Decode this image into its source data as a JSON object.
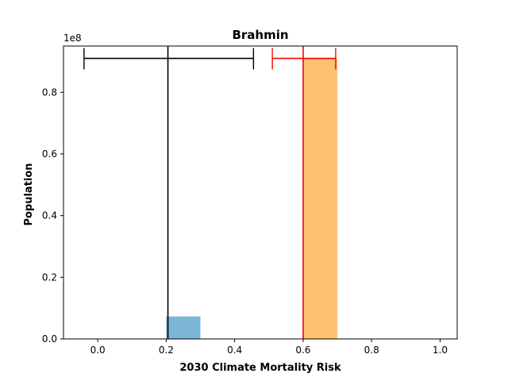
{
  "chart_data": {
    "type": "bar",
    "title": "Brahmin",
    "xlabel": "2030 Climate Mortality Risk",
    "ylabel": "Population",
    "y_offset_label": "1e8",
    "xlim": [
      -0.1,
      1.05
    ],
    "ylim": [
      0,
      0.95
    ],
    "x_ticks": [
      0.0,
      0.2,
      0.4,
      0.6,
      0.8,
      1.0
    ],
    "x_tick_labels": [
      "0.0",
      "0.2",
      "0.4",
      "0.6",
      "0.8",
      "1.0"
    ],
    "y_ticks": [
      0.0,
      0.2,
      0.4,
      0.6,
      0.8
    ],
    "y_tick_labels": [
      "0.0",
      "0.2",
      "0.4",
      "0.6",
      "0.8"
    ],
    "grid": false,
    "bars": [
      {
        "x_start": 0.2,
        "x_end": 0.3,
        "value": 0.073,
        "color": "#7eb6d9"
      },
      {
        "x_start": 0.6,
        "x_end": 0.7,
        "value": 0.91,
        "color": "#fec071"
      }
    ],
    "markers": [
      {
        "x": 0.205,
        "color": "#000000",
        "error_low": -0.04,
        "error_high": 0.455,
        "error_y": 0.91
      },
      {
        "x": 0.6,
        "color": "#ff0000",
        "error_low": 0.51,
        "error_high": 0.695,
        "error_y": 0.91
      }
    ]
  }
}
